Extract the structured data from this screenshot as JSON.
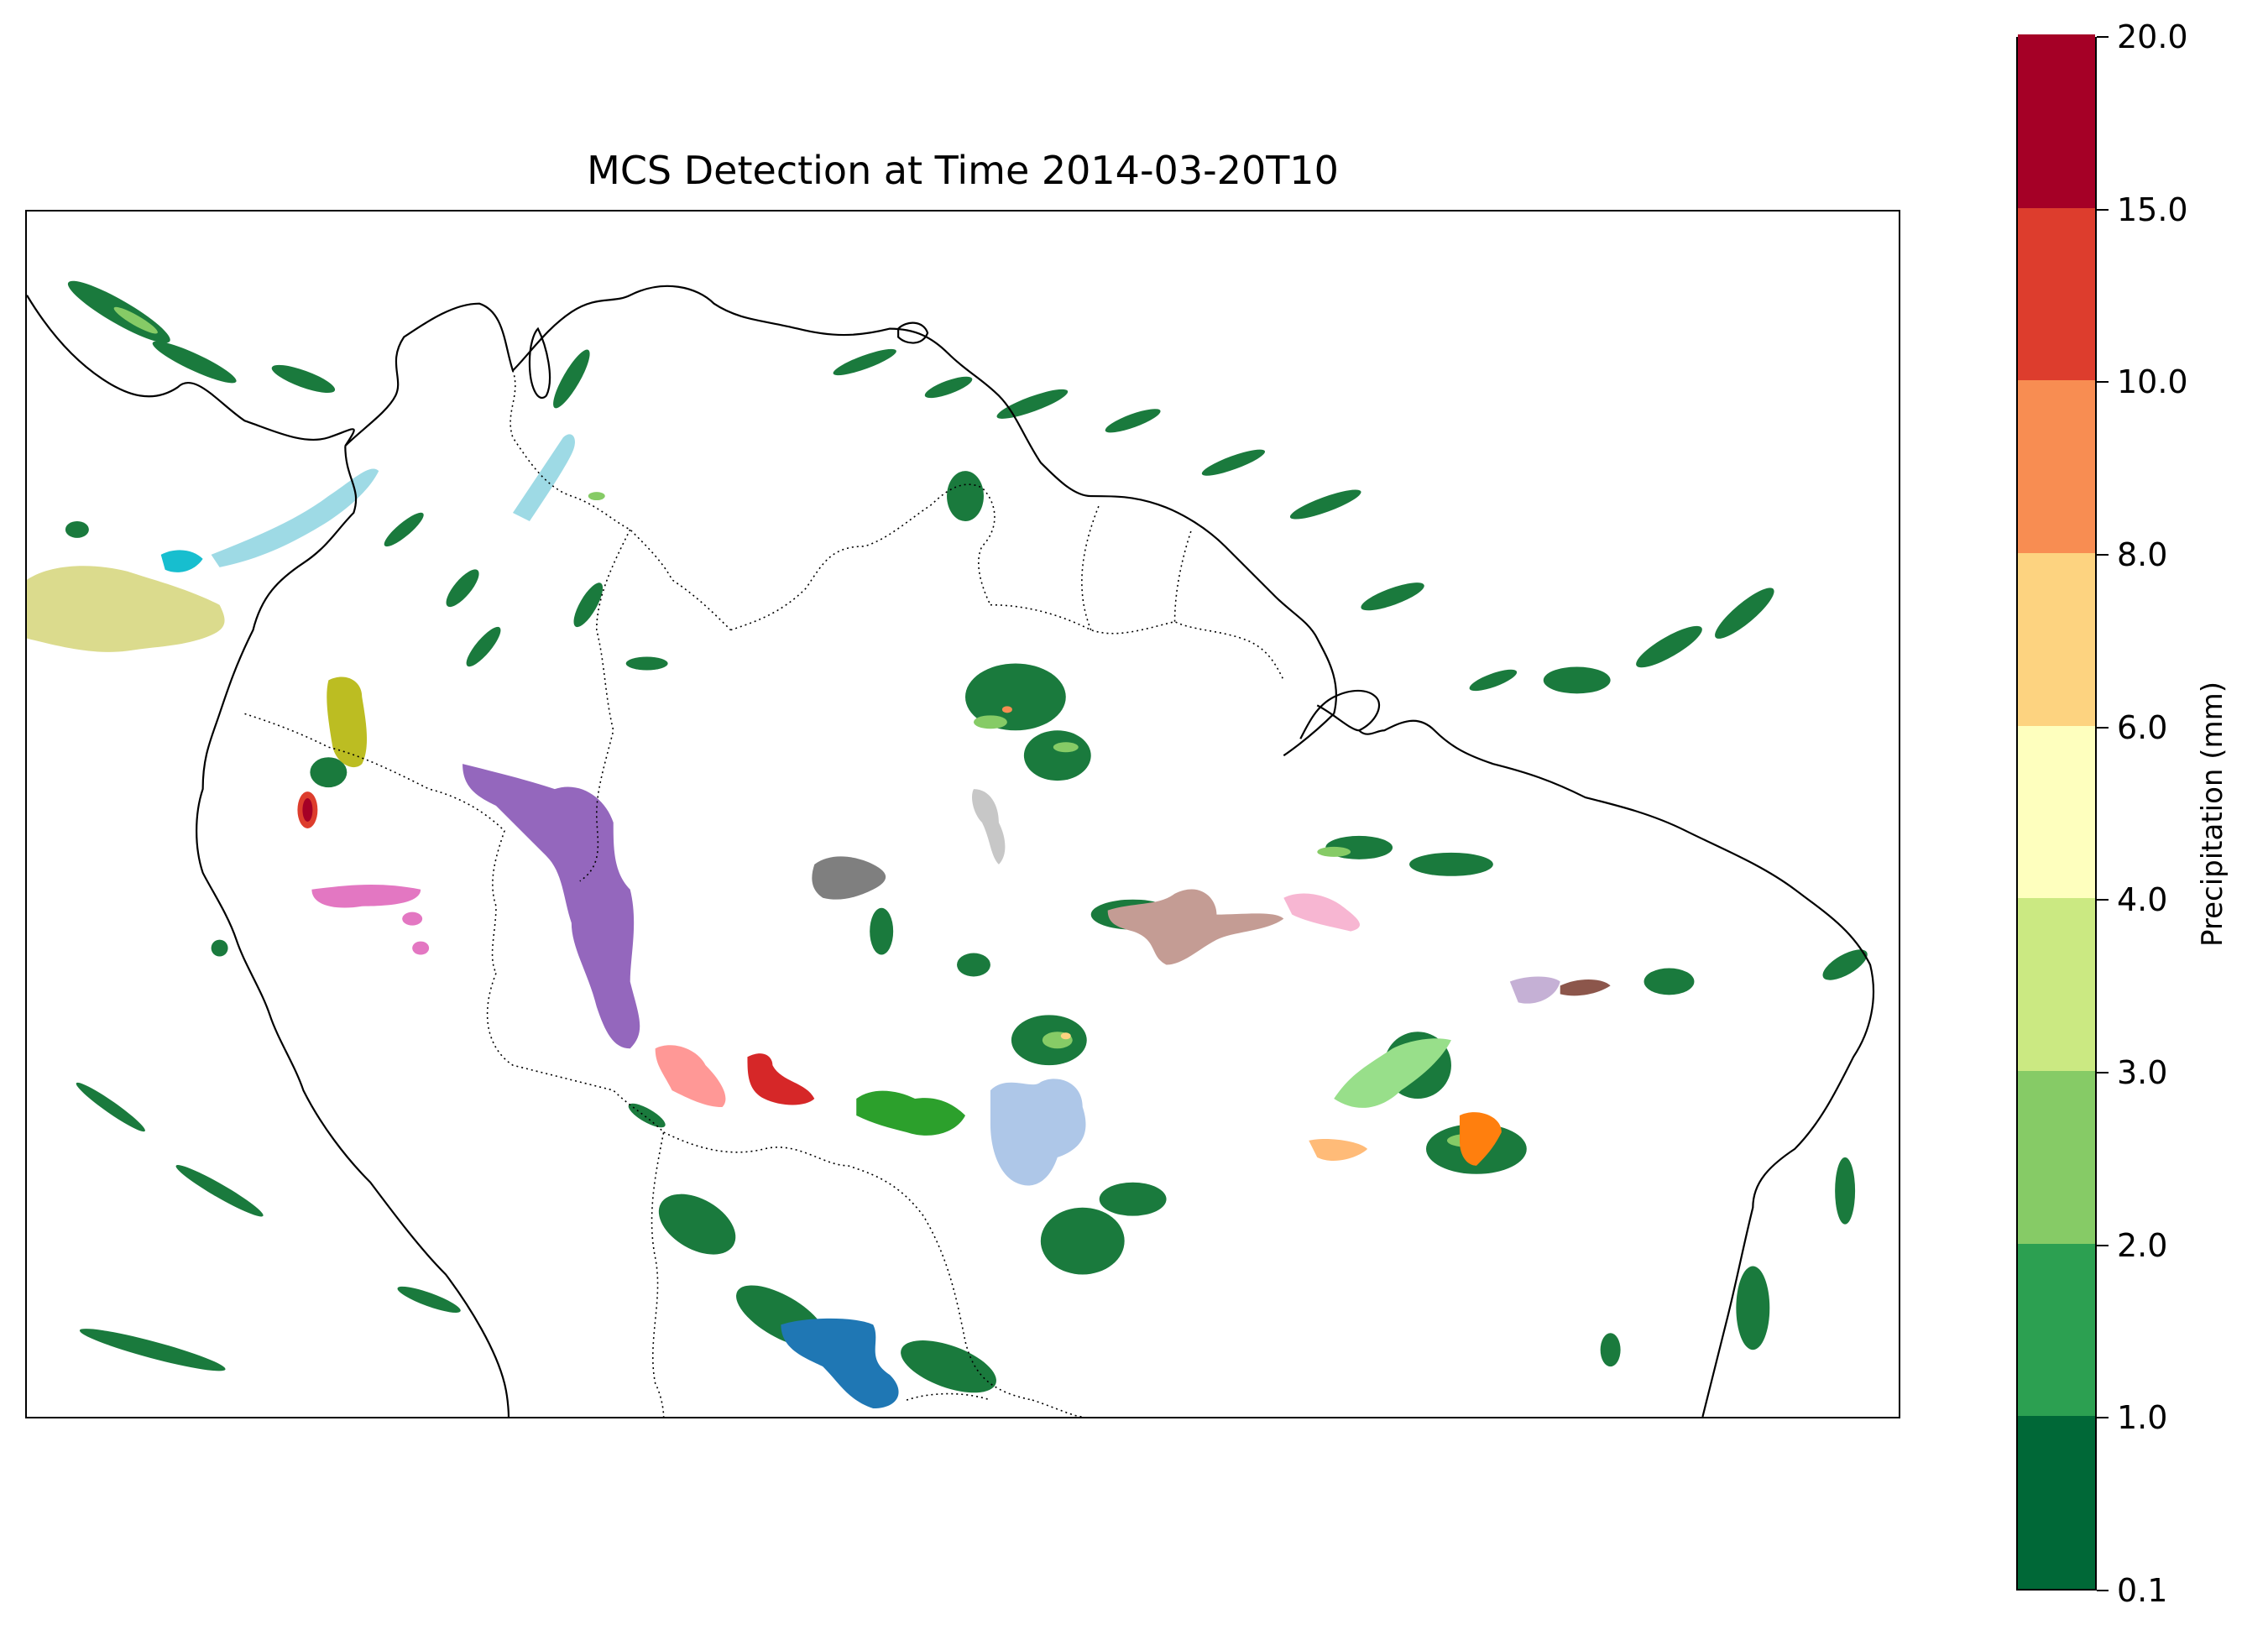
{
  "title": "MCS Detection at Time 2014-03-20T10",
  "colorbar": {
    "label": "Precipitation (mm)",
    "ticks": [
      "0.1",
      "1.0",
      "2.0",
      "3.0",
      "4.0",
      "6.0",
      "8.0",
      "10.0",
      "15.0",
      "20.0"
    ],
    "colors": [
      "#006837",
      "#2ca051",
      "#86cb66",
      "#cbe982",
      "#feffbe",
      "#fdd380",
      "#f88d52",
      "#dd3d2d",
      "#a50026"
    ]
  },
  "mcs_palette": [
    "#1f77b4",
    "#aec7e8",
    "#ff7f0e",
    "#ffbb78",
    "#2ca02c",
    "#98df8a",
    "#d62728",
    "#ff9896",
    "#9467bd",
    "#c5b0d5",
    "#8c564b",
    "#c49c94",
    "#e377c2",
    "#f7b6d2",
    "#7f7f7f",
    "#c7c7c7",
    "#bcbd22",
    "#dbdb8d",
    "#17becf",
    "#9edae5"
  ]
}
